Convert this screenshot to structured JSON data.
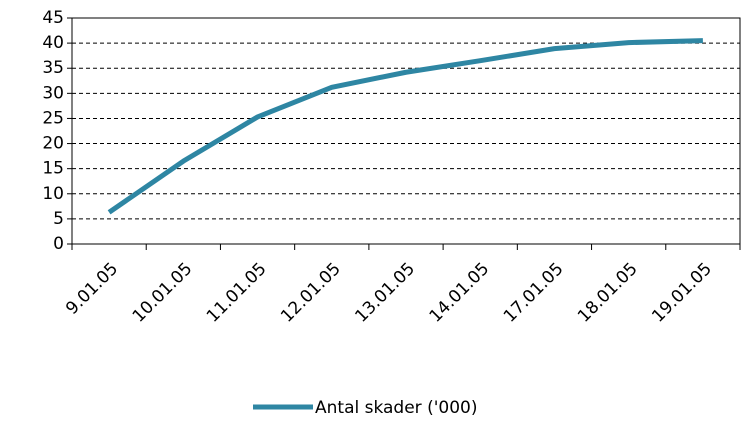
{
  "chart_data": {
    "type": "line",
    "categories": [
      "9.01.05",
      "10.01.05",
      "11.01.05",
      "12.01.05",
      "13.01.05",
      "14.01.05",
      "17.01.05",
      "18.01.05",
      "19.01.05"
    ],
    "series": [
      {
        "name": "Antal skader ('000)",
        "color": "#2e86a3",
        "values": [
          6.3,
          16.5,
          25.3,
          31.2,
          34.2,
          36.5,
          38.9,
          40.1,
          40.5
        ]
      }
    ],
    "ylim": [
      0,
      45
    ],
    "yticks": [
      0,
      5,
      10,
      15,
      20,
      25,
      30,
      35,
      40,
      45
    ],
    "grid": true,
    "legend": "bottom"
  }
}
